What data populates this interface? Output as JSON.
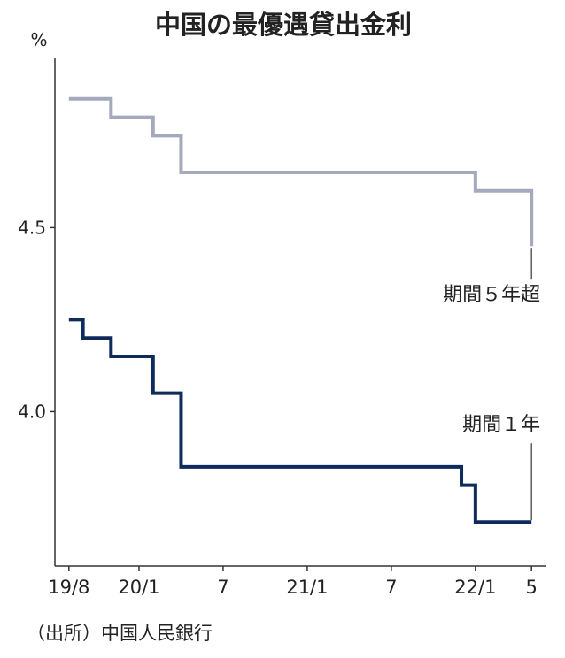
{
  "chart_data": {
    "type": "step-line",
    "title": "中国の最優遇貸出金利",
    "y_unit": "%",
    "source": "（出所）中国人民銀行",
    "xlim": [
      "2019-07",
      "2022-06"
    ],
    "xticks": [
      {
        "value": "2019-08",
        "label": "19/8"
      },
      {
        "value": "2020-01",
        "label": "20/1"
      },
      {
        "value": "2020-07",
        "label": "7"
      },
      {
        "value": "2021-01",
        "label": "21/1"
      },
      {
        "value": "2021-07",
        "label": "7"
      },
      {
        "value": "2022-01",
        "label": "22/1"
      },
      {
        "value": "2022-05",
        "label": "5"
      }
    ],
    "ylim": [
      3.59,
      4.96
    ],
    "yticks": [
      {
        "value": 4,
        "label": "4.0"
      },
      4.5
    ],
    "grid": false,
    "series": [
      {
        "name": "期間５年超",
        "color": "#a4a9bb",
        "x": [
          "2019-08",
          "2019-11",
          "2020-02",
          "2020-04",
          "2022-01",
          "2022-05"
        ],
        "values": [
          4.85,
          4.8,
          4.75,
          4.65,
          4.6,
          4.45
        ]
      },
      {
        "name": "期間１年",
        "color": "#0e2b5c",
        "x": [
          "2019-08",
          "2019-09",
          "2019-11",
          "2020-02",
          "2020-04",
          "2021-12",
          "2022-01",
          "2022-05"
        ],
        "values": [
          4.25,
          4.2,
          4.15,
          4.05,
          3.85,
          3.8,
          3.7,
          3.7
        ]
      }
    ]
  }
}
